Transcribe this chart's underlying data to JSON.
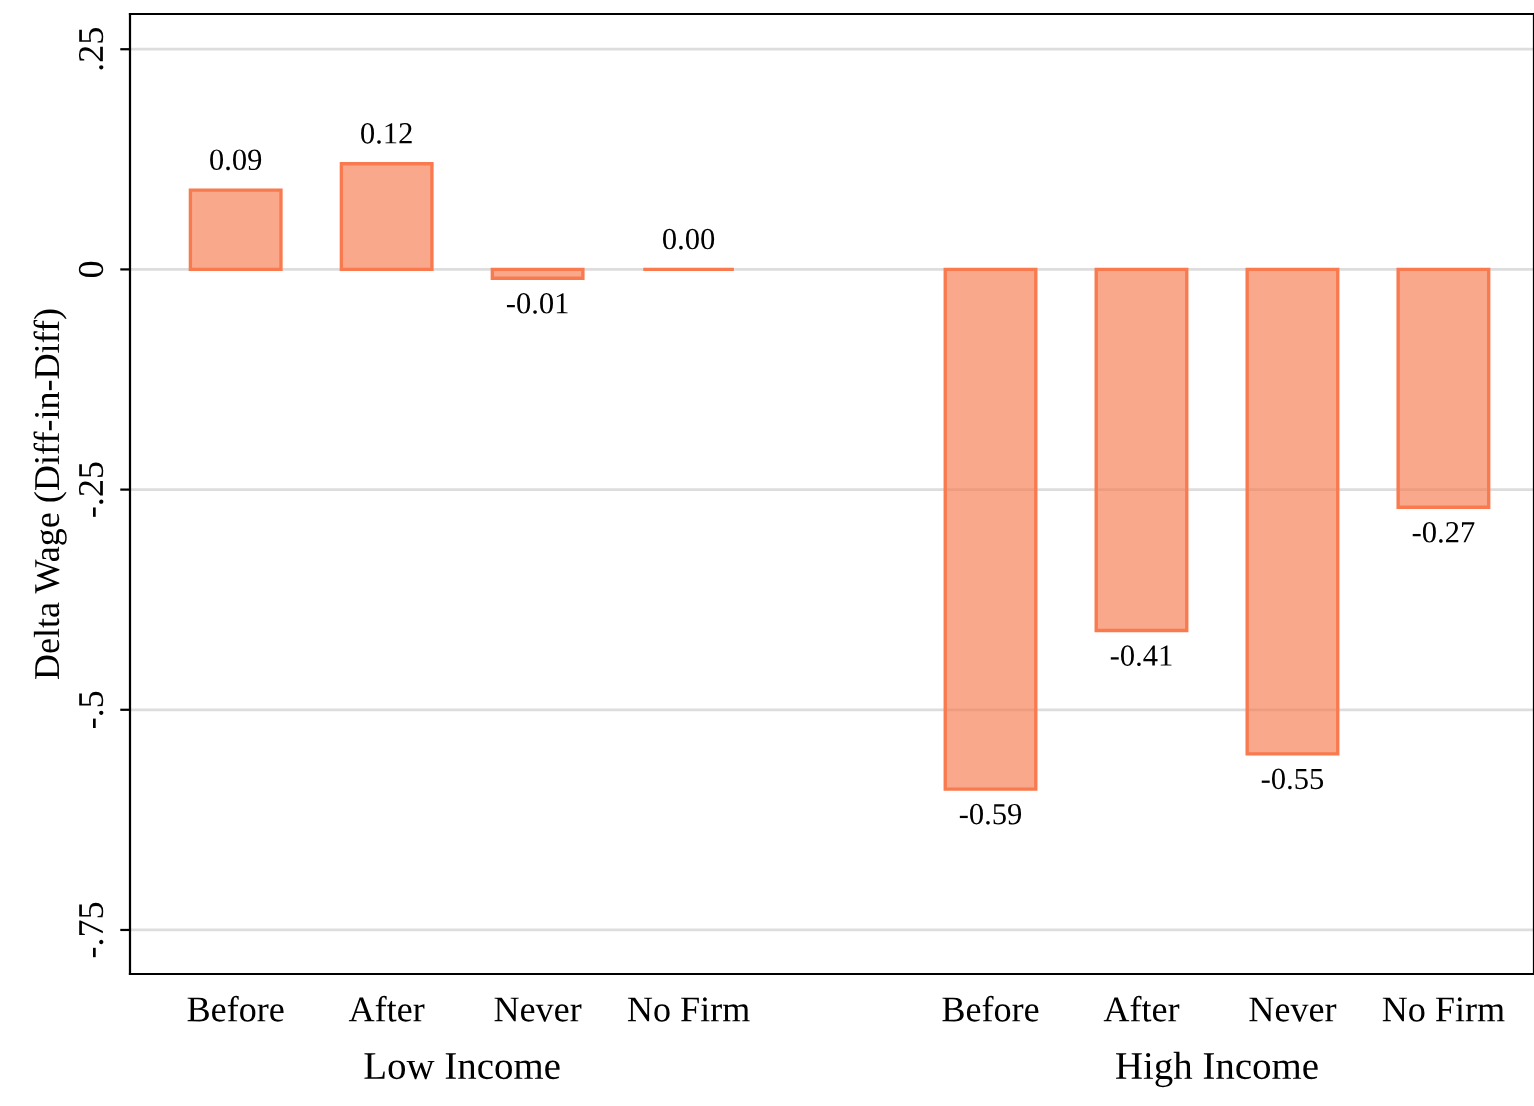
{
  "chart_data": {
    "type": "bar",
    "ylabel": "Delta Wage (Diff-in-Diff)",
    "categories": [
      "Before",
      "After",
      "Never",
      "No Firm",
      null,
      "Before",
      "After",
      "Never",
      "No Firm"
    ],
    "values": [
      0.09,
      0.12,
      -0.01,
      0.0,
      null,
      -0.59,
      -0.41,
      -0.55,
      -0.27
    ],
    "value_labels": [
      "0.09",
      "0.12",
      "-0.01",
      "0.00",
      null,
      "-0.59",
      "-0.41",
      "-0.55",
      "-0.27"
    ],
    "color": "#f87a4e",
    "annotations": [
      "Low Income",
      "High Income"
    ],
    "ylim": [
      -0.8,
      0.29
    ],
    "yticks": [
      {
        "value": 0.25,
        "label": ".25"
      },
      0,
      {
        "value": -0.25,
        "label": "-.25"
      },
      {
        "value": -0.5,
        "label": "-.5"
      },
      {
        "value": -0.75,
        "label": "-.75"
      }
    ],
    "grid": "y",
    "legend": false
  }
}
